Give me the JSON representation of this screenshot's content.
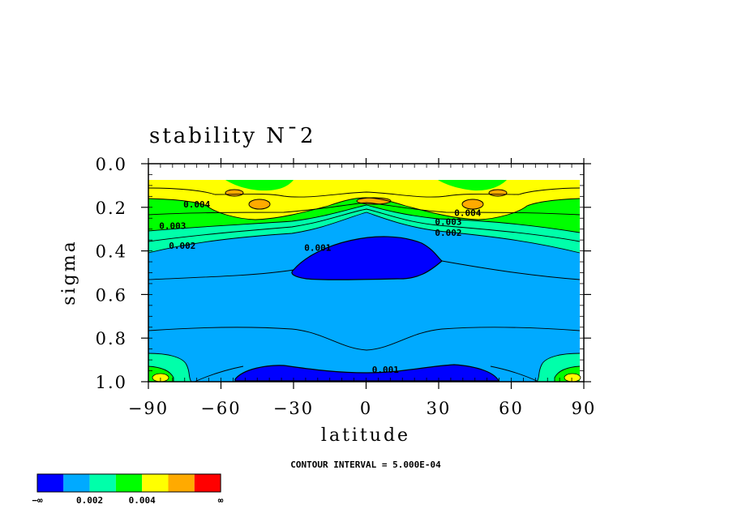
{
  "chart_data": {
    "type": "contour",
    "title": "stability N¯2",
    "xlabel": "latitude",
    "ylabel": "sigma",
    "xlim": [
      -90,
      90
    ],
    "ylim": [
      1.0,
      0.0
    ],
    "x_ticks": [
      "−90",
      "−60",
      "−30",
      "0",
      "30",
      "60",
      "90"
    ],
    "x_tick_values": [
      -90,
      -60,
      -30,
      0,
      30,
      60,
      90
    ],
    "y_ticks": [
      "0.0",
      "0.2",
      "0.4",
      "0.6",
      "0.8",
      "1.0"
    ],
    "y_tick_values": [
      0.0,
      0.2,
      0.4,
      0.6,
      0.8,
      1.0
    ],
    "contour_labels": [
      {
        "text": "0.004",
        "lat": -70,
        "sigma": 0.2
      },
      {
        "text": "0.003",
        "lat": -80,
        "sigma": 0.3
      },
      {
        "text": "0.002",
        "lat": -76,
        "sigma": 0.39
      },
      {
        "text": "0.001",
        "lat": -20,
        "sigma": 0.4
      },
      {
        "text": "0.004",
        "lat": 42,
        "sigma": 0.24
      },
      {
        "text": "0.003",
        "lat": 34,
        "sigma": 0.28
      },
      {
        "text": "0.002",
        "lat": 34,
        "sigma": 0.33
      },
      {
        "text": "0.001",
        "lat": 8,
        "sigma": 0.96
      }
    ],
    "contour_interval_text": "CONTOUR INTERVAL = 5.000E-04",
    "colorbar": {
      "colors": [
        "#0000ff",
        "#00aaff",
        "#00ffaa",
        "#00ff00",
        "#ffff00",
        "#ffaa00",
        "#ff0000"
      ],
      "labels": [
        "−∞",
        "0.002",
        "0.004",
        "∞"
      ]
    }
  }
}
